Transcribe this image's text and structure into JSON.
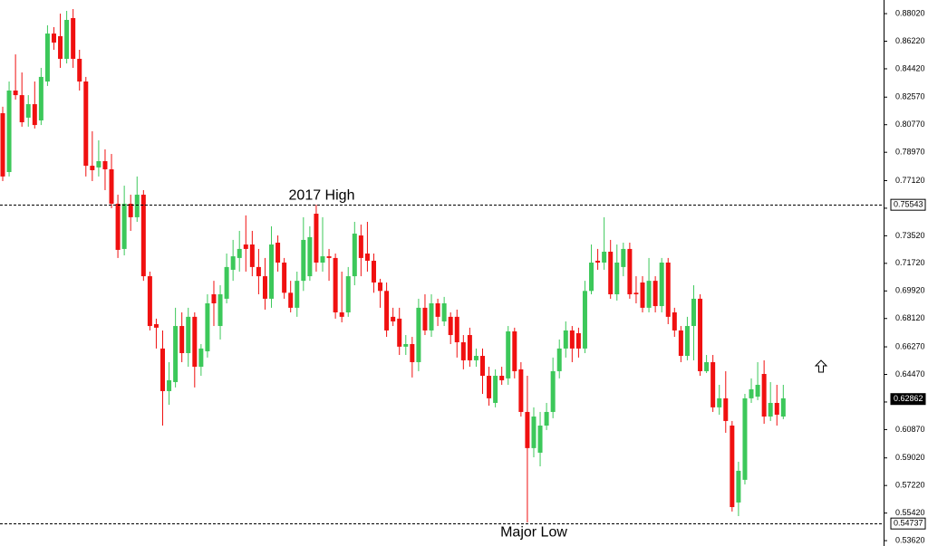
{
  "chart_data": {
    "type": "candlestick",
    "up_color": "#3cc85a",
    "down_color": "#f01010",
    "ylim": [
      0.5327,
      0.8891
    ],
    "yticks": [
      {
        "value": 0.8802,
        "label": "0.88020"
      },
      {
        "value": 0.8622,
        "label": "0.86220"
      },
      {
        "value": 0.8442,
        "label": "0.84420"
      },
      {
        "value": 0.8257,
        "label": "0.82570"
      },
      {
        "value": 0.8077,
        "label": "0.80770"
      },
      {
        "value": 0.7897,
        "label": "0.78970"
      },
      {
        "value": 0.7712,
        "label": "0.77120"
      },
      {
        "value": 0.7532,
        "label": "0.75320"
      },
      {
        "value": 0.7352,
        "label": "0.73520"
      },
      {
        "value": 0.7172,
        "label": "0.71720"
      },
      {
        "value": 0.6992,
        "label": "0.69920"
      },
      {
        "value": 0.6812,
        "label": "0.68120"
      },
      {
        "value": 0.6627,
        "label": "0.66270"
      },
      {
        "value": 0.6447,
        "label": "0.64470"
      },
      {
        "value": 0.6267,
        "label": "0.62670"
      },
      {
        "value": 0.6087,
        "label": "0.60870"
      },
      {
        "value": 0.5902,
        "label": "0.59020"
      },
      {
        "value": 0.5722,
        "label": "0.57220"
      },
      {
        "value": 0.5542,
        "label": "0.55420"
      },
      {
        "value": 0.5362,
        "label": "0.53620"
      }
    ],
    "high_line": 0.75543,
    "low_line": 0.54737,
    "last_price": 0.62862,
    "annotations": [
      {
        "text": "2017 High",
        "value": 0.75543
      },
      {
        "text": "Major Low",
        "value": 0.54737
      }
    ],
    "candles": [
      [
        0.8152,
        0.8194,
        0.7709,
        0.7739
      ],
      [
        0.7768,
        0.8359,
        0.7739,
        0.83
      ],
      [
        0.83,
        0.8536,
        0.8241,
        0.827
      ],
      [
        0.827,
        0.8418,
        0.8064,
        0.8093
      ],
      [
        0.8123,
        0.827,
        0.8064,
        0.8211
      ],
      [
        0.8211,
        0.8359,
        0.8052,
        0.8075
      ],
      [
        0.8105,
        0.8448,
        0.8075,
        0.8389
      ],
      [
        0.8359,
        0.8726,
        0.833,
        0.8672
      ],
      [
        0.8672,
        0.8714,
        0.8566,
        0.8613
      ],
      [
        0.8655,
        0.8802,
        0.8448,
        0.8507
      ],
      [
        0.8507,
        0.882,
        0.8477,
        0.8761
      ],
      [
        0.8773,
        0.8832,
        0.8448,
        0.8507
      ],
      [
        0.8507,
        0.8566,
        0.83,
        0.8359
      ],
      [
        0.8359,
        0.8389,
        0.7739,
        0.7809
      ],
      [
        0.7809,
        0.8034,
        0.7709,
        0.778
      ],
      [
        0.7798,
        0.7975,
        0.7739,
        0.7839
      ],
      [
        0.7839,
        0.7916,
        0.765,
        0.7786
      ],
      [
        0.7786,
        0.7886,
        0.7532,
        0.7561
      ],
      [
        0.7561,
        0.762,
        0.7207,
        0.726
      ],
      [
        0.7266,
        0.7679,
        0.7224,
        0.7561
      ],
      [
        0.7561,
        0.762,
        0.7384,
        0.7473
      ],
      [
        0.7473,
        0.7739,
        0.7443,
        0.762
      ],
      [
        0.762,
        0.765,
        0.7058,
        0.7088
      ],
      [
        0.7088,
        0.7118,
        0.6734,
        0.6763
      ],
      [
        0.6775,
        0.6811,
        0.6616,
        0.6752
      ],
      [
        0.6616,
        0.6734,
        0.6113,
        0.6338
      ],
      [
        0.6338,
        0.6527,
        0.6249,
        0.6409
      ],
      [
        0.6397,
        0.6882,
        0.6362,
        0.6763
      ],
      [
        0.6763,
        0.6852,
        0.6527,
        0.6586
      ],
      [
        0.6586,
        0.6882,
        0.6497,
        0.6823
      ],
      [
        0.6823,
        0.6852,
        0.6362,
        0.6497
      ],
      [
        0.6497,
        0.6645,
        0.6438,
        0.6616
      ],
      [
        0.6598,
        0.697,
        0.6557,
        0.6911
      ],
      [
        0.697,
        0.7058,
        0.6763,
        0.6911
      ],
      [
        0.6763,
        0.7029,
        0.6675,
        0.697
      ],
      [
        0.6941,
        0.7236,
        0.6911,
        0.7148
      ],
      [
        0.713,
        0.7325,
        0.7058,
        0.7218
      ],
      [
        0.7207,
        0.7384,
        0.7118,
        0.7266
      ],
      [
        0.7295,
        0.7485,
        0.7118,
        0.7266
      ],
      [
        0.7295,
        0.7384,
        0.7088,
        0.7148
      ],
      [
        0.7148,
        0.7266,
        0.697,
        0.7088
      ],
      [
        0.7088,
        0.7207,
        0.687,
        0.6941
      ],
      [
        0.6941,
        0.7414,
        0.6882,
        0.7295
      ],
      [
        0.7307,
        0.7354,
        0.7118,
        0.7177
      ],
      [
        0.7177,
        0.7207,
        0.6941,
        0.698
      ],
      [
        0.698,
        0.7058,
        0.6852,
        0.6882
      ],
      [
        0.6882,
        0.7118,
        0.6823,
        0.7058
      ],
      [
        0.7058,
        0.7473,
        0.6992,
        0.7325
      ],
      [
        0.7088,
        0.7414,
        0.7058,
        0.7343
      ],
      [
        0.7496,
        0.7555,
        0.7118,
        0.7177
      ],
      [
        0.7177,
        0.7473,
        0.7118,
        0.7218
      ],
      [
        0.7218,
        0.7266,
        0.7058,
        0.7207
      ],
      [
        0.7207,
        0.7236,
        0.6811,
        0.6852
      ],
      [
        0.6852,
        0.7118,
        0.6787,
        0.6823
      ],
      [
        0.6852,
        0.7148,
        0.6823,
        0.7088
      ],
      [
        0.7088,
        0.7443,
        0.7029,
        0.7366
      ],
      [
        0.7354,
        0.7425,
        0.7088,
        0.7207
      ],
      [
        0.7236,
        0.7443,
        0.7118,
        0.7189
      ],
      [
        0.7189,
        0.7236,
        0.698,
        0.7047
      ],
      [
        0.7047,
        0.7071,
        0.6882,
        0.6992
      ],
      [
        0.6992,
        0.7047,
        0.6692,
        0.6734
      ],
      [
        0.6823,
        0.6882,
        0.6763,
        0.6793
      ],
      [
        0.6811,
        0.6882,
        0.6574,
        0.6628
      ],
      [
        0.6628,
        0.6704,
        0.6574,
        0.6645
      ],
      [
        0.6645,
        0.6692,
        0.6427,
        0.6527
      ],
      [
        0.6527,
        0.6941,
        0.6468,
        0.6882
      ],
      [
        0.6882,
        0.697,
        0.6704,
        0.6734
      ],
      [
        0.6734,
        0.697,
        0.6692,
        0.6911
      ],
      [
        0.6911,
        0.6941,
        0.6763,
        0.6823
      ],
      [
        0.6793,
        0.6953,
        0.6763,
        0.6911
      ],
      [
        0.6823,
        0.6852,
        0.6645,
        0.6704
      ],
      [
        0.6823,
        0.687,
        0.6557,
        0.6657
      ],
      [
        0.6657,
        0.6704,
        0.648,
        0.6539
      ],
      [
        0.6704,
        0.6752,
        0.6497,
        0.6539
      ],
      [
        0.6539,
        0.6616,
        0.6497,
        0.6568
      ],
      [
        0.6568,
        0.6616,
        0.632,
        0.6438
      ],
      [
        0.6438,
        0.6497,
        0.6243,
        0.6291
      ],
      [
        0.6261,
        0.648,
        0.6232,
        0.6438
      ],
      [
        0.6438,
        0.6497,
        0.6379,
        0.6409
      ],
      [
        0.6421,
        0.6763,
        0.6379,
        0.6728
      ],
      [
        0.6728,
        0.6752,
        0.6421,
        0.6468
      ],
      [
        0.648,
        0.6527,
        0.6172,
        0.6202
      ],
      [
        0.6202,
        0.6438,
        0.5481,
        0.5966
      ],
      [
        0.5966,
        0.6232,
        0.5906,
        0.6172
      ],
      [
        0.5936,
        0.6202,
        0.5847,
        0.6113
      ],
      [
        0.6113,
        0.6261,
        0.6084,
        0.6202
      ],
      [
        0.6202,
        0.6557,
        0.6161,
        0.6468
      ],
      [
        0.6468,
        0.6675,
        0.6421,
        0.6616
      ],
      [
        0.6616,
        0.6793,
        0.6557,
        0.6734
      ],
      [
        0.6734,
        0.6763,
        0.6527,
        0.6616
      ],
      [
        0.6716,
        0.6752,
        0.6557,
        0.6616
      ],
      [
        0.6616,
        0.7058,
        0.6586,
        0.6992
      ],
      [
        0.6992,
        0.7295,
        0.697,
        0.7177
      ],
      [
        0.7189,
        0.7266,
        0.713,
        0.7177
      ],
      [
        0.7177,
        0.7473,
        0.713,
        0.7248
      ],
      [
        0.7248,
        0.7325,
        0.6941,
        0.697
      ],
      [
        0.697,
        0.7295,
        0.6929,
        0.7177
      ],
      [
        0.7148,
        0.7307,
        0.7088,
        0.7266
      ],
      [
        0.7266,
        0.7307,
        0.6941,
        0.697
      ],
      [
        0.698,
        0.7088,
        0.6911,
        0.697
      ],
      [
        0.7047,
        0.7088,
        0.6852,
        0.6882
      ],
      [
        0.6882,
        0.7207,
        0.6852,
        0.7058
      ],
      [
        0.7058,
        0.7088,
        0.6852,
        0.6893
      ],
      [
        0.6893,
        0.7207,
        0.6852,
        0.7177
      ],
      [
        0.7177,
        0.7207,
        0.6775,
        0.6823
      ],
      [
        0.6852,
        0.6882,
        0.6692,
        0.6734
      ],
      [
        0.6734,
        0.6763,
        0.6527,
        0.6568
      ],
      [
        0.6568,
        0.6823,
        0.6539,
        0.6763
      ],
      [
        0.6763,
        0.7029,
        0.6539,
        0.6941
      ],
      [
        0.6941,
        0.697,
        0.6438,
        0.6468
      ],
      [
        0.6468,
        0.6574,
        0.6456,
        0.6527
      ],
      [
        0.6527,
        0.6574,
        0.6202,
        0.6232
      ],
      [
        0.6232,
        0.6379,
        0.6184,
        0.6291
      ],
      [
        0.6291,
        0.6468,
        0.6066,
        0.6143
      ],
      [
        0.6113,
        0.6143,
        0.5552,
        0.5581
      ],
      [
        0.5611,
        0.5877,
        0.5522,
        0.5818
      ],
      [
        0.5759,
        0.632,
        0.5729,
        0.6291
      ],
      [
        0.6291,
        0.6421,
        0.6261,
        0.635
      ],
      [
        0.6302,
        0.6527,
        0.6279,
        0.6379
      ],
      [
        0.645,
        0.6539,
        0.6125,
        0.6172
      ],
      [
        0.6172,
        0.6397,
        0.6143,
        0.6261
      ],
      [
        0.6261,
        0.6379,
        0.6113,
        0.6184
      ],
      [
        0.6172,
        0.6379,
        0.6155,
        0.6291
      ]
    ]
  }
}
